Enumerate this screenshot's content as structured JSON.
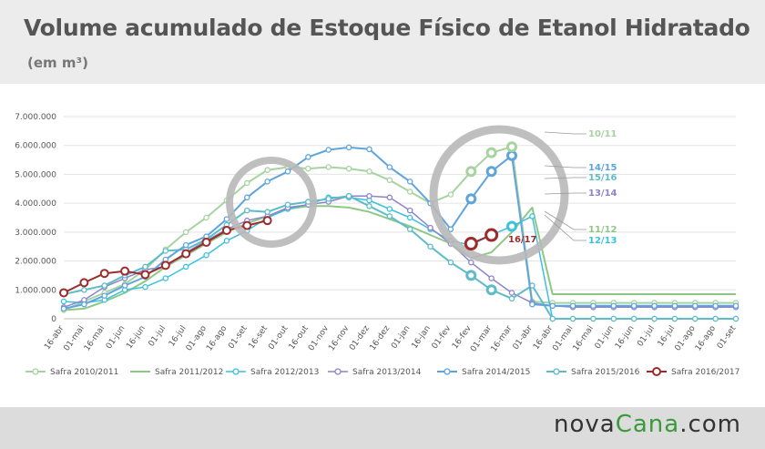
{
  "title": "Volume acumulado de Estoque Físico de Etanol Hidratado",
  "subtitle": "(em m³)",
  "brand": {
    "part1": "nova",
    "part2": "Cana",
    "part3": ".com"
  },
  "chart_data": {
    "type": "line",
    "ylim": [
      0,
      7000000
    ],
    "yticks": [
      0,
      1000000,
      2000000,
      3000000,
      4000000,
      5000000,
      6000000,
      7000000
    ],
    "ytick_labels": [
      "0",
      "1.000.000",
      "2.000.000",
      "3.000.000",
      "4.000.000",
      "5.000.000",
      "6.000.000",
      "7.000.000"
    ],
    "categories": [
      "16-abr",
      "01-mai",
      "16-mai",
      "01-jun",
      "16-jun",
      "01-jul",
      "16-jul",
      "01-ago",
      "16-ago",
      "01-set",
      "16-set",
      "01-out",
      "16-out",
      "01-nov",
      "16-nov",
      "01-dez",
      "16-dez",
      "01-jan",
      "16-jan",
      "01-fev",
      "16-fev",
      "01-mar",
      "16-mar",
      "01-abr",
      "16-abr",
      "01-mai",
      "16-mai",
      "01-jun",
      "16-jun",
      "01-jul",
      "16-jul",
      "01-ago",
      "16-ago",
      "01-set"
    ],
    "series": [
      {
        "name": "Safra 2010/2011",
        "label": "10/11",
        "color": "#a7d3a0",
        "marker": "open",
        "width": 2,
        "values": [
          300000,
          600000,
          900000,
          1200000,
          1700000,
          2400000,
          3000000,
          3500000,
          4100000,
          4700000,
          5150000,
          5250000,
          5200000,
          5250000,
          5200000,
          5100000,
          4800000,
          4400000,
          4000000,
          4300000,
          5100000,
          5750000,
          5950000,
          600000,
          550000,
          550000,
          550000,
          550000,
          550000,
          550000,
          550000,
          550000,
          550000,
          550000
        ]
      },
      {
        "name": "Safra 2011/2012",
        "label": "11/12",
        "color": "#8fc884",
        "marker": "none",
        "width": 2,
        "values": [
          300000,
          350000,
          600000,
          900000,
          1300000,
          1800000,
          2200000,
          2600000,
          3000000,
          3300000,
          3550000,
          3800000,
          3900000,
          3900000,
          3850000,
          3700000,
          3450000,
          3200000,
          2900000,
          2600000,
          2100000,
          2300000,
          3000000,
          3850000,
          850000,
          850000,
          850000,
          850000,
          850000,
          850000,
          850000,
          850000,
          850000,
          850000
        ]
      },
      {
        "name": "Safra 2012/2013",
        "label": "12/13",
        "color": "#3cc0e0",
        "marker": "open",
        "width": 1.5,
        "values": [
          600000,
          550000,
          650000,
          1000000,
          1100000,
          1400000,
          1800000,
          2200000,
          2700000,
          3050000,
          3500000,
          3800000,
          3950000,
          4200000,
          4200000,
          4100000,
          3800000,
          3500000,
          3100000,
          2700000,
          2550000,
          2900000,
          3200000,
          3550000,
          0,
          0,
          0,
          0,
          0,
          0,
          0,
          0,
          0,
          0
        ]
      },
      {
        "name": "Safra 2013/2014",
        "label": "13/14",
        "color": "#8c84cc",
        "marker": "open",
        "width": 1.5,
        "values": [
          400000,
          650000,
          1100000,
          1400000,
          1700000,
          1800000,
          2300000,
          2700000,
          3100000,
          3400000,
          3550000,
          3850000,
          3950000,
          4050000,
          4250000,
          4250000,
          4200000,
          3750000,
          3150000,
          2600000,
          1950000,
          1400000,
          900000,
          550000,
          450000,
          400000,
          400000,
          400000,
          400000,
          400000,
          400000,
          400000,
          400000,
          400000
        ]
      },
      {
        "name": "Safra 2014/2015",
        "label": "14/15",
        "color": "#5fa4dc",
        "marker": "open",
        "width": 2,
        "values": [
          350000,
          500000,
          800000,
          1150000,
          1450000,
          2050000,
          2550000,
          2850000,
          3450000,
          4200000,
          4750000,
          5100000,
          5600000,
          5850000,
          5930000,
          5870000,
          5250000,
          4750000,
          4000000,
          3100000,
          4150000,
          5100000,
          5650000,
          500000,
          450000,
          450000,
          450000,
          450000,
          450000,
          450000,
          450000,
          450000,
          450000,
          450000
        ]
      },
      {
        "name": "Safra 2015/2016",
        "label": "15/16",
        "color": "#5ebcc8",
        "marker": "open",
        "width": 2,
        "values": [
          850000,
          1000000,
          1150000,
          1500000,
          1800000,
          2350000,
          2400000,
          2750000,
          3250000,
          3750000,
          3700000,
          3950000,
          4050000,
          4150000,
          4250000,
          3900000,
          3550000,
          3100000,
          2500000,
          1950000,
          1500000,
          1000000,
          700000,
          1150000,
          0,
          0,
          0,
          0,
          0,
          0,
          0,
          0,
          0,
          0
        ]
      },
      {
        "name": "Safra 2016/2017",
        "label": "16/17",
        "color": "#9e2b2b",
        "marker": "open",
        "width": 2,
        "values": [
          900000,
          1250000,
          1570000,
          1650000,
          1530000,
          1850000,
          2250000,
          2650000,
          3060000,
          3230000,
          3400000,
          null,
          null,
          null,
          null,
          null,
          null,
          null,
          null,
          null,
          2600000,
          2900000,
          null,
          null,
          null,
          null,
          null,
          null,
          null,
          null,
          null,
          null,
          null,
          null
        ]
      }
    ],
    "legend_position": "bottom",
    "highlight_circles": 2,
    "grid": true
  }
}
